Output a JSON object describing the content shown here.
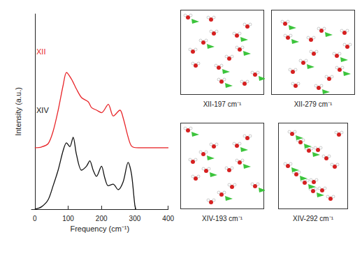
{
  "chart_data": {
    "type": "line",
    "x_label": "Frequency (cm⁻¹)",
    "y_label": "Intensity (a.u.)",
    "xlim": [
      -10,
      400
    ],
    "xticks": [
      0,
      100,
      200,
      300,
      400
    ],
    "tick_labels": "x",
    "series": [
      {
        "name": "XII",
        "color": "#e8262a",
        "x": [
          0,
          20,
          40,
          55,
          70,
          85,
          95,
          110,
          125,
          140,
          160,
          170,
          185,
          200,
          220,
          235,
          255,
          265,
          280,
          290,
          310,
          400
        ],
        "values": [
          0,
          0.01,
          0.05,
          0.2,
          0.45,
          0.75,
          0.9,
          0.82,
          0.7,
          0.6,
          0.55,
          0.48,
          0.45,
          0.42,
          0.52,
          0.38,
          0.45,
          0.35,
          0.12,
          0.02,
          0,
          0
        ],
        "ylim": [
          0,
          1.6
        ]
      },
      {
        "name": "XIV",
        "color": "#111111",
        "x": [
          0,
          20,
          40,
          55,
          70,
          85,
          95,
          105,
          115,
          125,
          140,
          155,
          165,
          175,
          185,
          200,
          210,
          220,
          235,
          250,
          265,
          280,
          290,
          300,
          303
        ],
        "values": [
          0,
          0.03,
          0.12,
          0.3,
          0.5,
          0.75,
          0.85,
          0.8,
          0.92,
          0.7,
          0.5,
          0.55,
          0.62,
          0.5,
          0.42,
          0.55,
          0.4,
          0.3,
          0.32,
          0.25,
          0.35,
          0.6,
          0.45,
          0.05,
          0
        ],
        "ylim": [
          0,
          2.5
        ]
      }
    ]
  },
  "snapshots": [
    {
      "label": "XII-197 cm⁻¹"
    },
    {
      "label": "XII-279 cm⁻¹"
    },
    {
      "label": "XIV-193 cm⁻¹"
    },
    {
      "label": "XIV-292 cm⁻¹"
    }
  ]
}
